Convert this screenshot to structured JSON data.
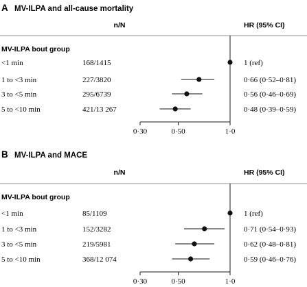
{
  "chart_data": [
    {
      "type": "forest",
      "letter": "A",
      "title": "MV-ILPA and all-cause mortality",
      "col_n_label": "n/N",
      "col_hr_label": "HR (95% CI)",
      "group_label": "MV-ILPA bout group",
      "x_scale": "log",
      "xlim": [
        0.3,
        1.0
      ],
      "x_ticks": [
        {
          "value": 0.3,
          "label": "0·30"
        },
        {
          "value": 0.5,
          "label": "0·50"
        },
        {
          "value": 1.0,
          "label": "1·0"
        }
      ],
      "reference_line": 1.0,
      "rows": [
        {
          "label": "<1 min",
          "n": "168/1415",
          "hr": 1.0,
          "lo": null,
          "hi": null,
          "hr_text": "1 (ref)"
        },
        {
          "label": "1 to <3 min",
          "n": "227/3820",
          "hr": 0.66,
          "lo": 0.52,
          "hi": 0.81,
          "hr_text": "0·66 (0·52–0·81)"
        },
        {
          "label": "3 to <5 min",
          "n": "295/6739",
          "hr": 0.56,
          "lo": 0.46,
          "hi": 0.69,
          "hr_text": "0·56 (0·46–0·69)"
        },
        {
          "label": "5 to <10 min",
          "n": "421/13 267",
          "hr": 0.48,
          "lo": 0.39,
          "hi": 0.59,
          "hr_text": "0·48 (0·39–0·59)"
        }
      ]
    },
    {
      "type": "forest",
      "letter": "B",
      "title": "MV-ILPA and MACE",
      "col_n_label": "n/N",
      "col_hr_label": "HR (95% CI)",
      "group_label": "MV-ILPA bout group",
      "x_scale": "log",
      "xlim": [
        0.3,
        1.0
      ],
      "x_ticks": [
        {
          "value": 0.3,
          "label": "0·30"
        },
        {
          "value": 0.5,
          "label": "0·50"
        },
        {
          "value": 1.0,
          "label": "1·0"
        }
      ],
      "reference_line": 1.0,
      "rows": [
        {
          "label": "<1 min",
          "n": "85/1109",
          "hr": 1.0,
          "lo": null,
          "hi": null,
          "hr_text": "1 (ref)"
        },
        {
          "label": "1 to <3 min",
          "n": "152/3282",
          "hr": 0.71,
          "lo": 0.54,
          "hi": 0.93,
          "hr_text": "0·71 (0·54–0·93)"
        },
        {
          "label": "3 to <5 min",
          "n": "219/5981",
          "hr": 0.62,
          "lo": 0.48,
          "hi": 0.81,
          "hr_text": "0·62 (0·48–0·81)"
        },
        {
          "label": "5 to <10 min",
          "n": "368/12 074",
          "hr": 0.59,
          "lo": 0.46,
          "hi": 0.76,
          "hr_text": "0·59 (0·46–0·76)"
        }
      ]
    }
  ],
  "colors": {
    "text": "#1a1a1a",
    "rule": "#6e6e6e",
    "mark": "#111111"
  }
}
